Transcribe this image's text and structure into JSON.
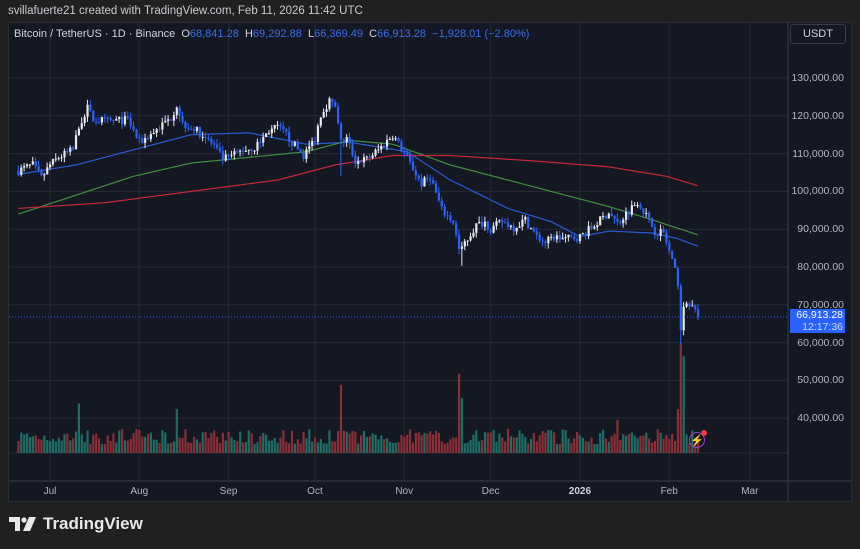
{
  "credit": "svillafuerte21 created with TradingView.com, Feb 11, 2026 11:42 UTC",
  "legend": {
    "symbol": "Bitcoin / TetherUS · 1D · Binance",
    "o_label": "O",
    "o": "68,841.28",
    "h_label": "H",
    "h": "69,292.88",
    "l_label": "L",
    "l": "66,369.49",
    "c_label": "C",
    "c": "66,913.28",
    "change": "−1,928.01 (−2.80%)"
  },
  "currency": "USDT",
  "last_price": {
    "price": "66,913.28",
    "countdown": "12:17:36"
  },
  "brand": "TradingView",
  "colors": {
    "up": "#e6e8ee",
    "down": "#2962ff",
    "vol_up": "#1e6e66",
    "vol_down": "#8a2f36",
    "ma_blue": "#2a5bd7",
    "ma_green": "#3f8f3f",
    "ma_red": "#c8283a",
    "background": "#141823"
  },
  "chart_data": {
    "type": "candlestick",
    "symbol": "BTCUSDT",
    "interval": "1D",
    "ylim": [
      35000,
      135000
    ],
    "y_ticks": [
      "130,000.00",
      "120,000.00",
      "110,000.00",
      "100,000.00",
      "90,000.00",
      "80,000.00",
      "70,000.00",
      "60,000.00",
      "50,000.00",
      "40,000.00"
    ],
    "y_tick_values": [
      130000,
      120000,
      110000,
      100000,
      90000,
      80000,
      70000,
      60000,
      50000,
      40000
    ],
    "x_ticks": [
      {
        "label": "Jul",
        "date": "2025-07-01"
      },
      {
        "label": "Aug",
        "date": "2025-08-01"
      },
      {
        "label": "Sep",
        "date": "2025-09-01"
      },
      {
        "label": "Oct",
        "date": "2025-10-01"
      },
      {
        "label": "Nov",
        "date": "2025-11-01"
      },
      {
        "label": "Dec",
        "date": "2025-12-01"
      },
      {
        "label": "2026",
        "date": "2026-01-01",
        "bold": true
      },
      {
        "label": "Feb",
        "date": "2026-02-01"
      },
      {
        "label": "Mar",
        "date": "2026-03-01"
      }
    ],
    "grid": true,
    "start_date": "2025-06-20",
    "end_date": "2026-02-11",
    "close_path": [
      [
        "2025-06-20",
        105500
      ],
      [
        "2025-06-25",
        107000
      ],
      [
        "2025-06-28",
        103500
      ],
      [
        "2025-07-01",
        107000
      ],
      [
        "2025-07-04",
        109000
      ],
      [
        "2025-07-09",
        111000
      ],
      [
        "2025-07-11",
        117500
      ],
      [
        "2025-07-14",
        122000
      ],
      [
        "2025-07-16",
        119000
      ],
      [
        "2025-07-22",
        118500
      ],
      [
        "2025-07-28",
        119000
      ],
      [
        "2025-07-30",
        116000
      ],
      [
        "2025-08-01",
        113000
      ],
      [
        "2025-08-04",
        114500
      ],
      [
        "2025-08-08",
        117000
      ],
      [
        "2025-08-12",
        119500
      ],
      [
        "2025-08-14",
        123000
      ],
      [
        "2025-08-16",
        118000
      ],
      [
        "2025-08-19",
        117000
      ],
      [
        "2025-08-23",
        115000
      ],
      [
        "2025-08-27",
        112000
      ],
      [
        "2025-08-30",
        108500
      ],
      [
        "2025-09-01",
        109000
      ],
      [
        "2025-09-06",
        111000
      ],
      [
        "2025-09-10",
        111500
      ],
      [
        "2025-09-15",
        116000
      ],
      [
        "2025-09-18",
        117000
      ],
      [
        "2025-09-21",
        115000
      ],
      [
        "2025-09-24",
        112000
      ],
      [
        "2025-09-27",
        109500
      ],
      [
        "2025-10-01",
        114000
      ],
      [
        "2025-10-03",
        120500
      ],
      [
        "2025-10-06",
        124000
      ],
      [
        "2025-10-08",
        122000
      ],
      [
        "2025-10-10",
        113000
      ],
      [
        "2025-10-12",
        114000
      ],
      [
        "2025-10-15",
        108000
      ],
      [
        "2025-10-19",
        108500
      ],
      [
        "2025-10-23",
        111000
      ],
      [
        "2025-10-28",
        115000
      ],
      [
        "2025-11-01",
        110000
      ],
      [
        "2025-11-04",
        106000
      ],
      [
        "2025-11-07",
        102000
      ],
      [
        "2025-11-10",
        104000
      ],
      [
        "2025-11-14",
        95000
      ],
      [
        "2025-11-18",
        92000
      ],
      [
        "2025-11-20",
        84500
      ],
      [
        "2025-11-23",
        87500
      ],
      [
        "2025-11-26",
        91000
      ],
      [
        "2025-11-29",
        92000
      ],
      [
        "2025-12-01",
        90000
      ],
      [
        "2025-12-05",
        92000
      ],
      [
        "2025-12-09",
        90500
      ],
      [
        "2025-12-13",
        92500
      ],
      [
        "2025-12-17",
        88000
      ],
      [
        "2025-12-20",
        86500
      ],
      [
        "2025-12-23",
        88000
      ],
      [
        "2025-12-27",
        87500
      ],
      [
        "2026-01-01",
        88000
      ],
      [
        "2026-01-06",
        91000
      ],
      [
        "2026-01-11",
        94500
      ],
      [
        "2026-01-14",
        91500
      ],
      [
        "2026-01-18",
        95000
      ],
      [
        "2026-01-21",
        97500
      ],
      [
        "2026-01-23",
        95000
      ],
      [
        "2026-01-27",
        89500
      ],
      [
        "2026-01-30",
        89000
      ],
      [
        "2026-02-01",
        84000
      ],
      [
        "2026-02-04",
        76000
      ],
      [
        "2026-02-05",
        63000
      ],
      [
        "2026-02-06",
        70500
      ],
      [
        "2026-02-08",
        70500
      ],
      [
        "2026-02-10",
        68841.28
      ],
      [
        "2026-02-11",
        66913.28
      ]
    ],
    "moving_averages": [
      {
        "color": "blue",
        "path": [
          [
            "2025-06-20",
            104500
          ],
          [
            "2025-07-10",
            107000
          ],
          [
            "2025-07-30",
            111000
          ],
          [
            "2025-08-19",
            115000
          ],
          [
            "2025-09-08",
            115500
          ],
          [
            "2025-09-28",
            112500
          ],
          [
            "2025-10-13",
            113000
          ],
          [
            "2025-11-02",
            110500
          ],
          [
            "2025-11-17",
            103000
          ],
          [
            "2025-12-07",
            95500
          ],
          [
            "2025-12-22",
            92000
          ],
          [
            "2026-01-01",
            88000
          ],
          [
            "2026-01-11",
            89500
          ],
          [
            "2026-01-26",
            89000
          ],
          [
            "2026-02-04",
            87500
          ],
          [
            "2026-02-11",
            85500
          ]
        ]
      },
      {
        "color": "green",
        "path": [
          [
            "2025-06-20",
            94000
          ],
          [
            "2025-07-10",
            99000
          ],
          [
            "2025-07-30",
            104000
          ],
          [
            "2025-08-19",
            107500
          ],
          [
            "2025-09-08",
            109000
          ],
          [
            "2025-09-28",
            110500
          ],
          [
            "2025-10-13",
            113500
          ],
          [
            "2025-10-28",
            112500
          ],
          [
            "2025-11-17",
            107000
          ],
          [
            "2025-12-07",
            103000
          ],
          [
            "2025-12-27",
            99000
          ],
          [
            "2026-01-11",
            96000
          ],
          [
            "2026-01-26",
            92500
          ],
          [
            "2026-02-11",
            88500
          ]
        ]
      },
      {
        "color": "red",
        "path": [
          [
            "2025-06-20",
            95500
          ],
          [
            "2025-07-20",
            97000
          ],
          [
            "2025-08-19",
            100000
          ],
          [
            "2025-09-18",
            103000
          ],
          [
            "2025-10-08",
            107000
          ],
          [
            "2025-10-28",
            109500
          ],
          [
            "2025-11-17",
            109500
          ],
          [
            "2025-12-17",
            108000
          ],
          [
            "2026-01-11",
            106500
          ],
          [
            "2026-01-31",
            104000
          ],
          [
            "2026-02-11",
            101500
          ]
        ]
      }
    ],
    "volume_spikes": [
      [
        "2025-07-11",
        45
      ],
      [
        "2025-08-14",
        40
      ],
      [
        "2025-10-10",
        62
      ],
      [
        "2025-11-20",
        72
      ],
      [
        "2025-11-21",
        50
      ],
      [
        "2026-01-14",
        30
      ],
      [
        "2026-02-04",
        40
      ],
      [
        "2026-02-05",
        100
      ],
      [
        "2026-02-06",
        88
      ]
    ]
  }
}
